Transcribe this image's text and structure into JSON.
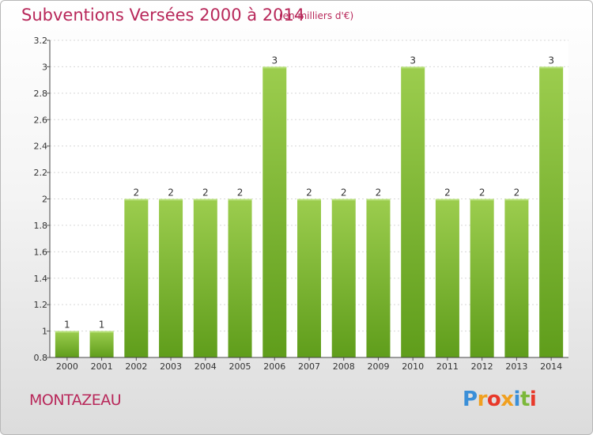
{
  "header": {
    "title": "Subventions Versées 2000 à 2014",
    "subtitle": "(en milliers d'€)"
  },
  "footer": {
    "place": "MONTAZEAU",
    "brand": "Proxiti",
    "brand_letters": [
      {
        "ch": "P",
        "color": "#3a8fd8"
      },
      {
        "ch": "r",
        "color": "#f0a020"
      },
      {
        "ch": "o",
        "color": "#e8392a"
      },
      {
        "ch": "x",
        "color": "#f0a020"
      },
      {
        "ch": "i",
        "color": "#3a8fd8"
      },
      {
        "ch": "t",
        "color": "#7cb83a"
      },
      {
        "ch": "i",
        "color": "#e8392a"
      }
    ]
  },
  "colors": {
    "bar_top": "#9ccd4e",
    "bar_bottom": "#5f9d1b",
    "accent": "#b8285a"
  },
  "chart_data": {
    "type": "bar",
    "title": "Subventions Versées 2000 à 2014",
    "subtitle": "(en milliers d'€)",
    "xlabel": "",
    "ylabel": "",
    "categories": [
      "2000",
      "2001",
      "2002",
      "2003",
      "2004",
      "2005",
      "2006",
      "2007",
      "2008",
      "2009",
      "2010",
      "2011",
      "2012",
      "2013",
      "2014"
    ],
    "values": [
      1,
      1,
      2,
      2,
      2,
      2,
      3,
      2,
      2,
      2,
      3,
      2,
      2,
      2,
      3
    ],
    "data_labels": [
      "1",
      "1",
      "2",
      "2",
      "2",
      "2",
      "3",
      "2",
      "2",
      "2",
      "3",
      "2",
      "2",
      "2",
      "3"
    ],
    "bar_positions": [
      1,
      1,
      2,
      2,
      2,
      2,
      3,
      2,
      2,
      2,
      3,
      2,
      2,
      2,
      3
    ],
    "ylim": [
      0.8,
      3.2
    ],
    "yticks": [
      0.8,
      1,
      1.2,
      1.4,
      1.6,
      1.8,
      2,
      2.2,
      2.4,
      2.6,
      2.8,
      3,
      3.2
    ],
    "ytick_labels": [
      "0.8",
      "1",
      "1.2",
      "1.4",
      "1.6",
      "1.8",
      "2",
      "2.2",
      "2.4",
      "2.6",
      "2.8",
      "3",
      "3.2"
    ],
    "grid": true,
    "legend": "none"
  }
}
